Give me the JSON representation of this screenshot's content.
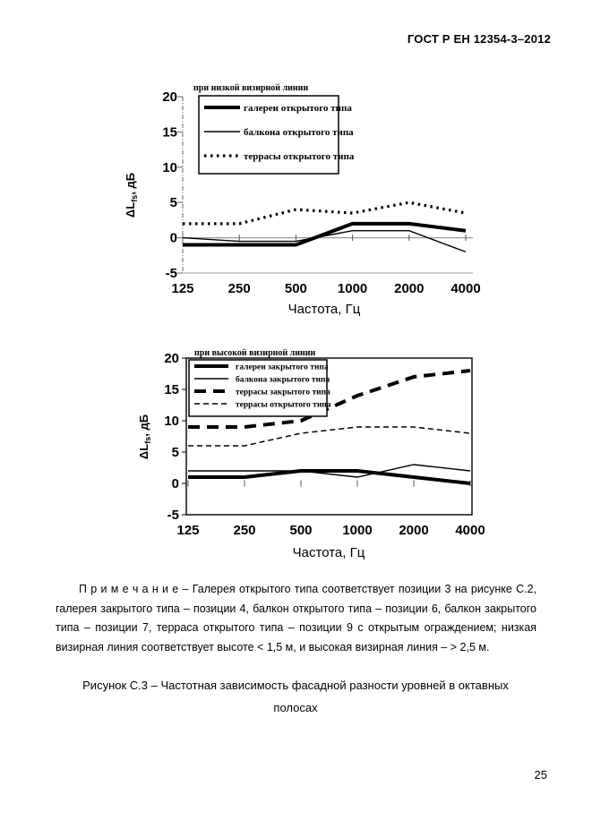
{
  "page": {
    "header": "ГОСТ Р ЕН 12354-3–2012",
    "page_number": "25",
    "note": {
      "label": "П р и м е ч а н и е",
      "text": " – Галерея открытого типа соответствует позиции 3 на рисунке С.2, галерея закрытого типа – позиции 4, балкон открытого типа – позиции 6, балкон закрытого типа – позиции 7, терраса открытого типа – позиции 9 с открытым ограждением; низкая визирная линия соответствует высоте < 1,5 м, и высокая визирная линия – > 2,5 м."
    },
    "caption": "Рисунок С.3 – Частотная зависимость фасадной разности уровней в октавных полосах"
  },
  "colors": {
    "ink": "#000000",
    "grid": "#9a9a9a",
    "background": "#ffffff"
  },
  "chart_data": [
    {
      "type": "line",
      "title": "при низкой визирной линии",
      "xlabel": "Частота, Гц",
      "ylabel": "ΔL_{fs}, дБ",
      "categories": [
        "125",
        "250",
        "500",
        "1000",
        "2000",
        "4000"
      ],
      "ylim": [
        -5,
        20
      ],
      "yticks": [
        20,
        15,
        10,
        5,
        0,
        -5
      ],
      "grid": false,
      "legend_position": "top-left",
      "series": [
        {
          "name": "галереи открытого типа",
          "style": "thick-solid",
          "values": [
            -1,
            -1,
            -1,
            2,
            2,
            1
          ]
        },
        {
          "name": "балкона открытого типа",
          "style": "thin-solid",
          "values": [
            0,
            -0.5,
            -0.5,
            1,
            1,
            -2
          ]
        },
        {
          "name": "террасы открытого типа",
          "style": "thick-dotted",
          "values": [
            2,
            2,
            4,
            3.5,
            5,
            3.5
          ]
        }
      ]
    },
    {
      "type": "line",
      "title": "при высокой визирной линии",
      "xlabel": "Частота, Гц",
      "ylabel": "ΔL_{fs}, дБ",
      "categories": [
        "125",
        "250",
        "500",
        "1000",
        "2000",
        "4000"
      ],
      "ylim": [
        -5,
        20
      ],
      "yticks": [
        20,
        15,
        10,
        5,
        0,
        -5
      ],
      "grid": false,
      "legend_position": "top-left",
      "series": [
        {
          "name": "галереи закрытого типа",
          "style": "thick-solid",
          "values": [
            1,
            1,
            2,
            2,
            1,
            0
          ]
        },
        {
          "name": "балкона закрытого типа",
          "style": "thin-solid",
          "values": [
            2,
            2,
            2,
            1,
            3,
            2
          ]
        },
        {
          "name": "террасы закрытого типа",
          "style": "thick-dashed",
          "values": [
            9,
            9,
            10,
            14,
            17,
            18
          ]
        },
        {
          "name": "террасы открытого типа",
          "style": "thin-dashed",
          "values": [
            6,
            6,
            8,
            9,
            9,
            8
          ]
        }
      ]
    }
  ]
}
